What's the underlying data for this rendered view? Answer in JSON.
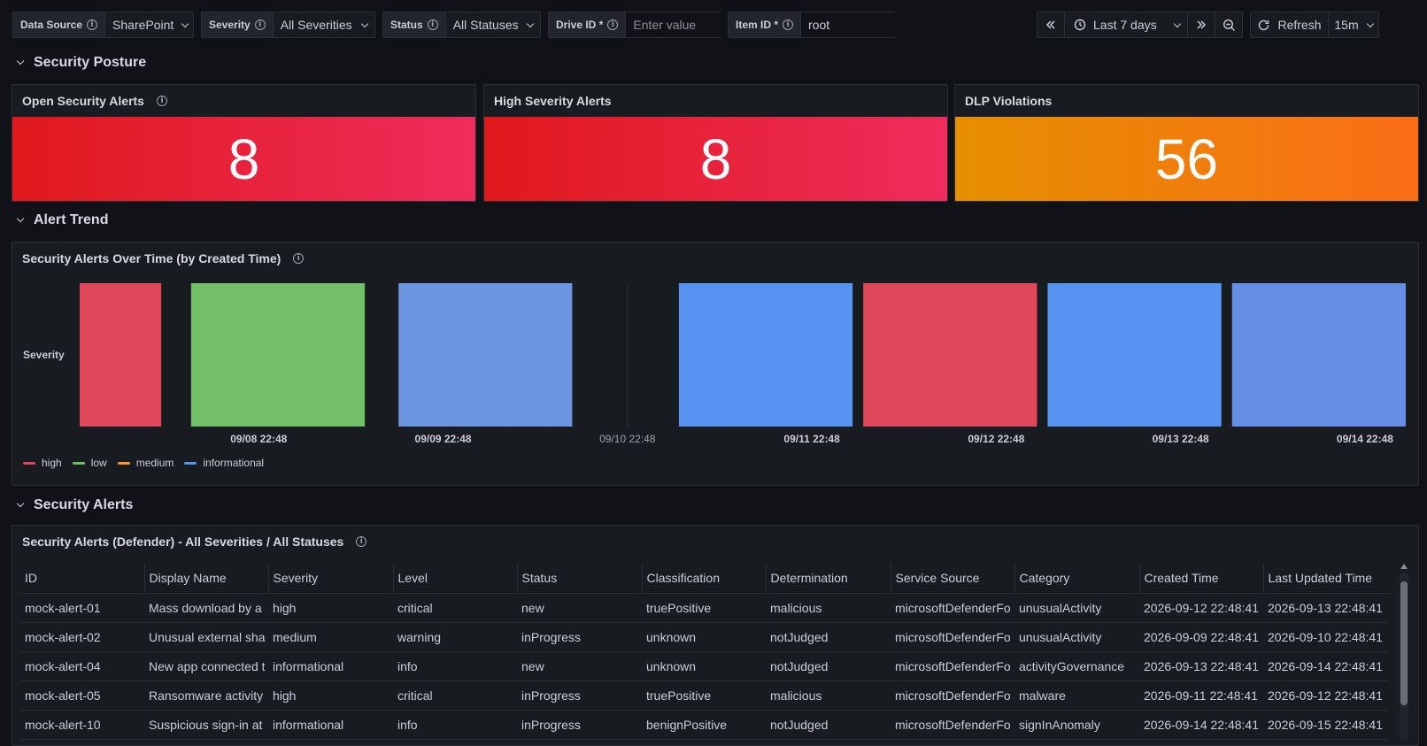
{
  "variables": {
    "data_source": {
      "label": "Data Source",
      "value": "SharePoint"
    },
    "severity": {
      "label": "Severity",
      "value": "All Severities"
    },
    "status": {
      "label": "Status",
      "value": "All Statuses"
    },
    "drive_id": {
      "label": "Drive ID *",
      "placeholder": "Enter value",
      "value": ""
    },
    "item_id": {
      "label": "Item ID *",
      "value": "root"
    }
  },
  "time_controls": {
    "shift_back_icon": "chevrons-left-icon",
    "range_label": "Last 7 days",
    "shift_forward_icon": "chevrons-right-icon",
    "zoom_out_icon": "zoom-out-icon",
    "refresh_label": "Refresh",
    "refresh_interval": "15m"
  },
  "sections": {
    "posture": "Security Posture",
    "trend": "Alert Trend",
    "alerts": "Security Alerts"
  },
  "stats": [
    {
      "title": "Open Security Alerts",
      "value": "8",
      "has_info": true,
      "color": "red"
    },
    {
      "title": "High Severity Alerts",
      "value": "8",
      "has_info": false,
      "color": "red"
    },
    {
      "title": "DLP Violations",
      "value": "56",
      "has_info": false,
      "color": "orange"
    }
  ],
  "chart_data": {
    "type": "bar",
    "title": "Security Alerts Over Time (by Created Time)",
    "ylabel": "Severity",
    "x_ticks": [
      "09/08 22:48",
      "09/09 22:48",
      "09/10 22:48",
      "09/11 22:48",
      "09/12 22:48",
      "09/13 22:48",
      "09/14 22:48"
    ],
    "legend": [
      {
        "name": "high",
        "color": "#e0475a"
      },
      {
        "name": "low",
        "color": "#73bf69"
      },
      {
        "name": "medium",
        "color": "#ff9830"
      },
      {
        "name": "informational",
        "color": "#5794f2"
      }
    ],
    "bars": [
      {
        "start": "09/07 22:48",
        "end": "09/08 10:48",
        "severity": "high",
        "color": "#e0475a"
      },
      {
        "start": "09/08 13:18",
        "end": "09/09 13:18",
        "severity": "low",
        "color": "#73bf69"
      },
      {
        "start": "09/09 16:18",
        "end": "09/10 16:18",
        "severity": "informational",
        "color": "#6b95e1"
      },
      {
        "start": "09/11 04:48",
        "end": "09/12 04:48",
        "severity": "informational",
        "color": "#5794f2"
      },
      {
        "start": "09/12 04:48",
        "end": "09/13 04:48",
        "severity": "high",
        "color": "#e0475a"
      },
      {
        "start": "09/13 04:48",
        "end": "09/14 04:48",
        "severity": "informational",
        "color": "#5794f2"
      },
      {
        "start": "09/14 04:48",
        "end": "09/15 04:48",
        "severity": "informational",
        "color": "#668ee5"
      }
    ]
  },
  "table": {
    "title": "Security Alerts (Defender) - All Severities / All Statuses",
    "columns": [
      "ID",
      "Display Name",
      "Severity",
      "Level",
      "Status",
      "Classification",
      "Determination",
      "Service Source",
      "Category",
      "Created Time",
      "Last Updated Time"
    ],
    "rows": [
      [
        "mock-alert-01",
        "Mass download by a",
        "high",
        "critical",
        "new",
        "truePositive",
        "malicious",
        "microsoftDefenderFo",
        "unusualActivity",
        "2026-09-12 22:48:41",
        "2026-09-13 22:48:41"
      ],
      [
        "mock-alert-02",
        "Unusual external sha",
        "medium",
        "warning",
        "inProgress",
        "unknown",
        "notJudged",
        "microsoftDefenderFo",
        "unusualActivity",
        "2026-09-09 22:48:41",
        "2026-09-10 22:48:41"
      ],
      [
        "mock-alert-04",
        "New app connected t",
        "informational",
        "info",
        "new",
        "unknown",
        "notJudged",
        "microsoftDefenderFo",
        "activityGovernance",
        "2026-09-13 22:48:41",
        "2026-09-14 22:48:41"
      ],
      [
        "mock-alert-05",
        "Ransomware activity",
        "high",
        "critical",
        "inProgress",
        "truePositive",
        "malicious",
        "microsoftDefenderFo",
        "malware",
        "2026-09-11 22:48:41",
        "2026-09-12 22:48:41"
      ],
      [
        "mock-alert-10",
        "Suspicious sign-in at",
        "informational",
        "info",
        "inProgress",
        "benignPositive",
        "notJudged",
        "microsoftDefenderFo",
        "signInAnomaly",
        "2026-09-14 22:48:41",
        "2026-09-15 22:48:41"
      ]
    ]
  }
}
